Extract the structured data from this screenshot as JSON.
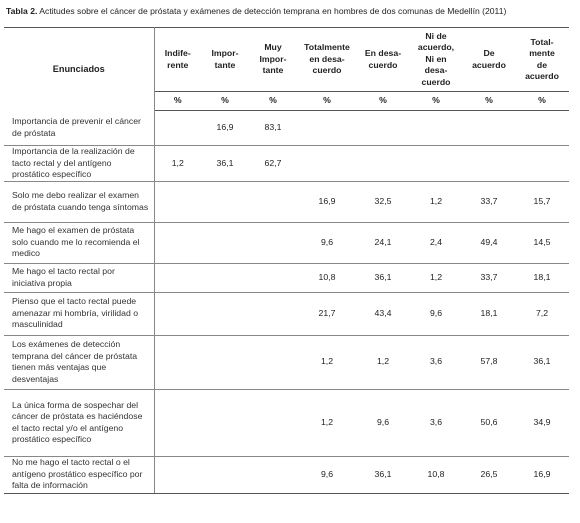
{
  "caption": {
    "label": "Tabla 2.",
    "text": "Actitudes sobre el cáncer de próstata y exámenes de detección temprana en hombres de dos comunas de Medellín (2011)"
  },
  "table": {
    "header_first": "Enunciados",
    "columns": [
      "Indife-\nrente",
      "Impor-\ntante",
      "Muy\nImpor-\ntante",
      "Totalmente\nen desa-\ncuerdo",
      "En desa-\ncuerdo",
      "Ni de\nacuerdo,\nNi en\ndesa-\ncuerdo",
      "De\nacuerdo",
      "Total-\nmente\nde\nacuerdo"
    ],
    "units": [
      "%",
      "%",
      "%",
      "%",
      "%",
      "%",
      "%",
      "%"
    ],
    "rows": [
      {
        "statement": "Importancia de prevenir el cáncer de próstata",
        "values": [
          "",
          "16,9",
          "83,1",
          "",
          "",
          "",
          "",
          ""
        ]
      },
      {
        "statement": "Importancia de la realización de tacto rectal y del antígeno prostático específico",
        "values": [
          "1,2",
          "36,1",
          "62,7",
          "",
          "",
          "",
          "",
          ""
        ]
      },
      {
        "statement": "Solo me debo realizar el examen de próstata cuando tenga síntomas",
        "values": [
          "",
          "",
          "",
          "16,9",
          "32,5",
          "1,2",
          "33,7",
          "15,7"
        ]
      },
      {
        "statement": "Me hago el examen de próstata solo cuando me lo recomienda el medico",
        "values": [
          "",
          "",
          "",
          "9,6",
          "24,1",
          "2,4",
          "49,4",
          "14,5"
        ]
      },
      {
        "statement": "Me hago el tacto rectal por iniciativa propia",
        "values": [
          "",
          "",
          "",
          "10,8",
          "36,1",
          "1,2",
          "33,7",
          "18,1"
        ]
      },
      {
        "statement": "Pienso que el tacto rectal puede amenazar mi hombría, virilidad o masculinidad",
        "values": [
          "",
          "",
          "",
          "21,7",
          "43,4",
          "9,6",
          "18,1",
          "7,2"
        ]
      },
      {
        "statement": "Los exámenes de detección temprana del cáncer de próstata tienen más ventajas que desventajas",
        "values": [
          "",
          "",
          "",
          "1,2",
          "1,2",
          "3,6",
          "57,8",
          "36,1"
        ]
      },
      {
        "statement": "La única forma de sospechar del cáncer de próstata es haciéndose el tacto rectal y/o el antígeno prostático específico",
        "values": [
          "",
          "",
          "",
          "1,2",
          "9,6",
          "3,6",
          "50,6",
          "34,9"
        ]
      },
      {
        "statement": "No me hago el tacto rectal o el antígeno prostático específico por falta de información",
        "values": [
          "",
          "",
          "",
          "9,6",
          "36,1",
          "10,8",
          "26,5",
          "16,9"
        ]
      }
    ]
  }
}
